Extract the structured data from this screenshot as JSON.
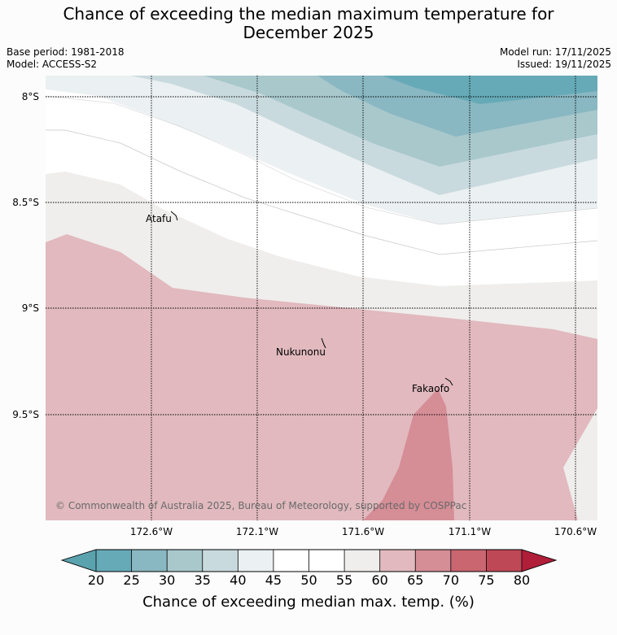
{
  "title_line1": "Chance of exceeding the median maximum temperature for",
  "title_line2": "December 2025",
  "meta": {
    "base_period": "Base period: 1981-2018",
    "model": "Model: ACCESS-S2",
    "model_run": "Model run: 17/11/2025",
    "issued": "Issued: 19/11/2025"
  },
  "axes": {
    "lat": [
      "8°S",
      "8.5°S",
      "9°S",
      "9.5°S"
    ],
    "lon": [
      "172.6°W",
      "172.1°W",
      "171.6°W",
      "171.1°W",
      "170.6°W"
    ]
  },
  "places": [
    "Atafu",
    "Nukunonu",
    "Fakaofo"
  ],
  "copyright": "© Commonwealth of Australia 2025, Bureau of Meteorology, supported by COSPPac",
  "colorbar": {
    "label": "Chance of exceeding median max. temp. (%)",
    "ticks": [
      "20",
      "25",
      "30",
      "35",
      "40",
      "45",
      "50",
      "55",
      "60",
      "65",
      "70",
      "75",
      "80"
    ],
    "colors": [
      "#5aa2ae",
      "#66aab7",
      "#89b7c2",
      "#a8c8cc",
      "#c9dade",
      "#ebf0f2",
      "#ffffff",
      "#ffffff",
      "#efeeec",
      "#e1b9be",
      "#d58d96",
      "#c96670",
      "#bf4856",
      "#b01e3a"
    ]
  }
}
